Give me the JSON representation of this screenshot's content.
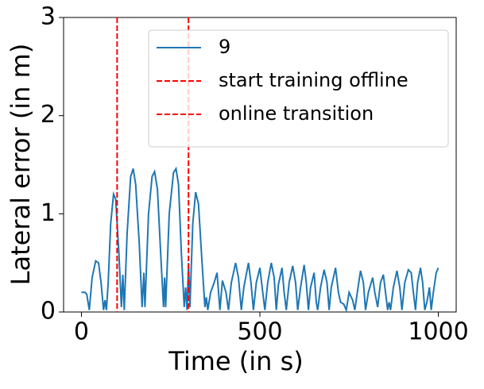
{
  "chart_data": {
    "type": "line",
    "x": [
      0,
      10,
      15,
      22,
      30,
      40,
      48,
      55,
      62,
      66,
      70,
      75,
      82,
      90,
      96,
      105,
      112,
      116,
      120,
      128,
      138,
      145,
      152,
      162,
      170,
      175,
      178,
      188,
      198,
      205,
      213,
      222,
      230,
      233,
      236,
      246,
      258,
      265,
      272,
      280,
      288,
      292,
      296,
      300,
      304,
      312,
      320,
      328,
      338,
      346,
      350,
      354,
      362,
      372,
      380,
      388,
      395,
      405,
      412,
      420,
      432,
      440,
      448,
      455,
      468,
      475,
      482,
      490,
      500,
      508,
      514,
      522,
      532,
      540,
      546,
      552,
      562,
      568,
      574,
      582,
      592,
      600,
      606,
      614,
      624,
      630,
      636,
      642,
      652,
      658,
      662,
      670,
      680,
      688,
      694,
      700,
      712,
      720,
      726,
      735,
      742,
      750,
      760,
      766,
      775,
      782,
      790,
      796,
      804,
      816,
      822,
      830,
      838,
      846,
      852,
      858,
      862,
      866,
      874,
      884,
      892,
      898,
      906,
      916,
      924,
      930,
      936,
      942,
      950,
      956,
      962,
      968,
      975,
      980,
      986,
      994,
      1000
    ],
    "series": [
      {
        "name": "9",
        "color": "#1f77b4",
        "values": [
          0.2,
          0.2,
          0.18,
          0.02,
          0.35,
          0.52,
          0.5,
          0.3,
          0.02,
          0.12,
          0.02,
          0.3,
          0.9,
          1.2,
          1.15,
          0.6,
          0.05,
          0.38,
          0.02,
          0.8,
          1.38,
          1.46,
          1.3,
          0.7,
          0.05,
          0.4,
          0.05,
          1.0,
          1.38,
          1.43,
          1.25,
          0.6,
          0.05,
          0.35,
          0.05,
          1.0,
          1.42,
          1.46,
          1.3,
          0.6,
          0.05,
          0.25,
          0.02,
          0.5,
          0.05,
          0.9,
          1.22,
          1.1,
          0.5,
          0.05,
          0.15,
          0.02,
          0.2,
          0.3,
          0.4,
          0.02,
          0.32,
          0.2,
          0.02,
          0.3,
          0.5,
          0.35,
          0.02,
          0.25,
          0.5,
          0.3,
          0.02,
          0.3,
          0.45,
          0.2,
          0.02,
          0.3,
          0.5,
          0.35,
          0.02,
          0.28,
          0.45,
          0.2,
          0.02,
          0.3,
          0.47,
          0.3,
          0.02,
          0.25,
          0.48,
          0.3,
          0.02,
          0.25,
          0.4,
          0.1,
          0.02,
          0.25,
          0.43,
          0.3,
          0.02,
          0.25,
          0.45,
          0.2,
          0.1,
          0.08,
          0.02,
          0.2,
          0.12,
          0.02,
          0.25,
          0.42,
          0.3,
          0.02,
          0.2,
          0.35,
          0.2,
          0.05,
          0.3,
          0.38,
          0.2,
          0.02,
          0.1,
          0.02,
          0.25,
          0.42,
          0.25,
          0.02,
          0.3,
          0.43,
          0.4,
          0.2,
          0.02,
          0.3,
          0.45,
          0.3,
          0.02,
          0.1,
          0.25,
          0.02,
          0.2,
          0.4,
          0.45
        ]
      }
    ],
    "vlines": [
      {
        "name": "start training offline",
        "color": "#ff0000",
        "x": 100
      },
      {
        "name": "online transition",
        "color": "#ff0000",
        "x": 300
      }
    ],
    "xlabel": "Time (in s)",
    "ylabel": "Lateral error (in m)",
    "xlim": [
      -50,
      1050
    ],
    "ylim": [
      0,
      3
    ],
    "xticks": [
      0,
      500,
      1000
    ],
    "yticks": [
      0,
      1,
      2,
      3
    ],
    "legend": "upper right"
  }
}
